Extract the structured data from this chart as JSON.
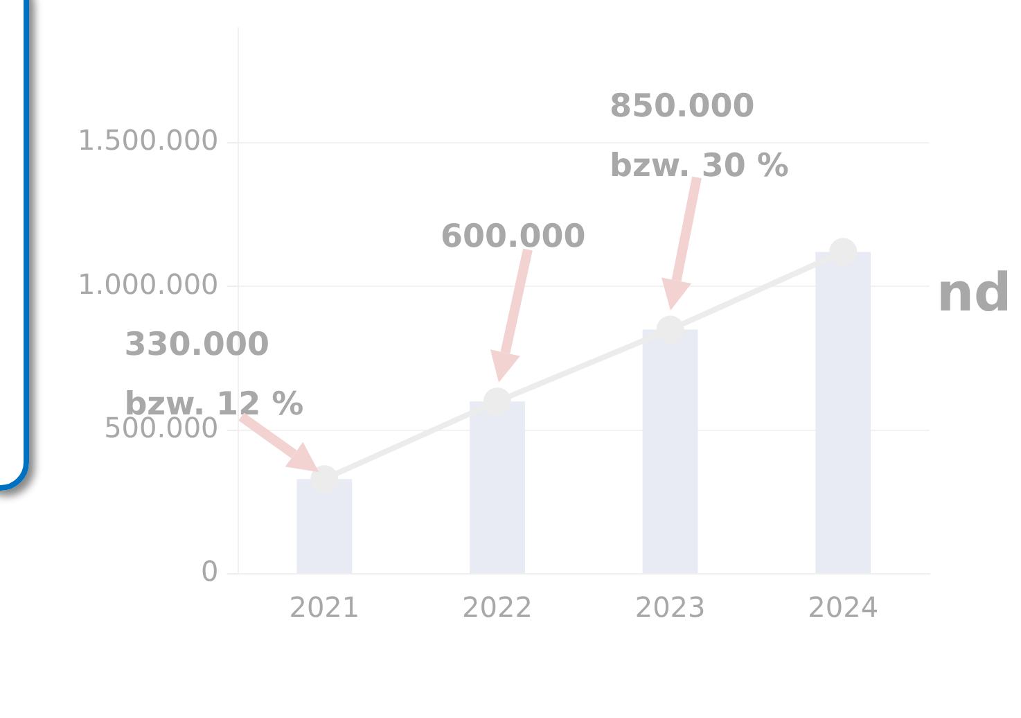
{
  "chart_data": {
    "type": "bar",
    "categories": [
      "2021",
      "2022",
      "2023",
      "2024"
    ],
    "series": [
      {
        "color": "#e8ebf3",
        "values": [
          330000,
          600000,
          850000,
          1120000
        ]
      },
      {
        "type": "line",
        "color": "#ececec",
        "values": [
          330000,
          600000,
          850000,
          1120000
        ]
      }
    ],
    "ylim": [
      0,
      1900000
    ],
    "yticks": [
      0,
      {
        "value": 500000,
        "label": "500.000"
      },
      {
        "value": 1000000,
        "label": "1.000.000"
      },
      {
        "value": 1500000,
        "label": "1.500.000"
      }
    ],
    "grid": "y",
    "legend": false,
    "marker": "circle",
    "annotations": [
      {
        "text": "330.000\nbzw. 12 %",
        "x": "2021",
        "y": 330000
      },
      "600.000",
      "850.000\nbzw. 30 %",
      "nd"
    ]
  }
}
